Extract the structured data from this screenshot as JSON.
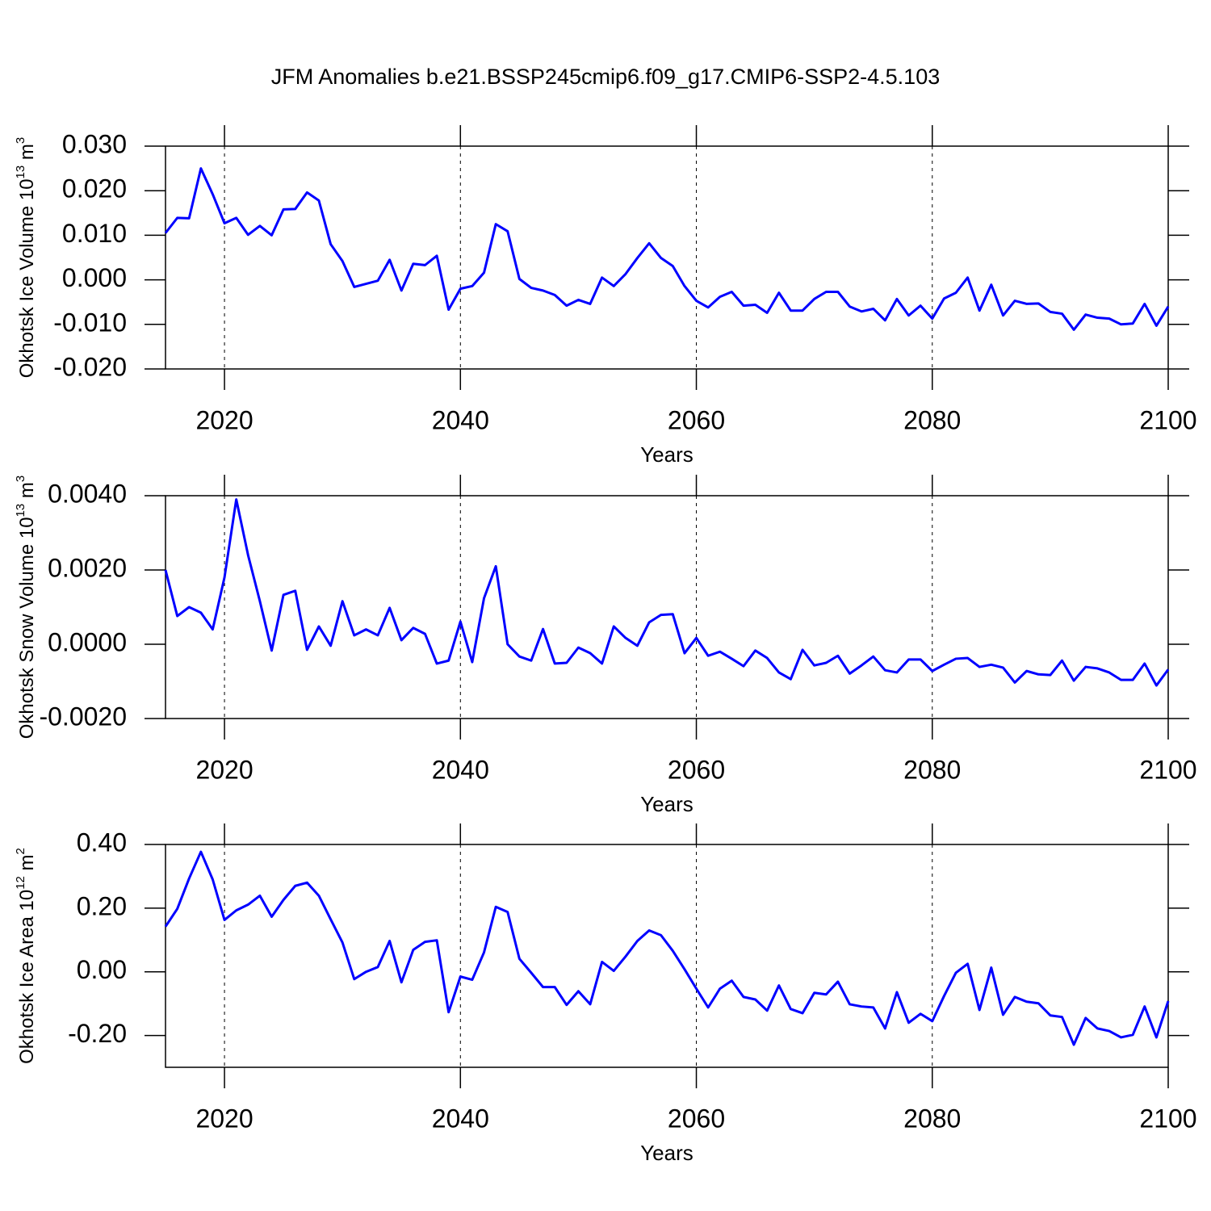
{
  "title": "JFM Anomalies b.e21.BSSP245cmip6.f09_g17.CMIP6-SSP2-4.5.103",
  "chart_data": [
    {
      "type": "line",
      "xlabel": "Years",
      "ylabel": [
        "Okhotsk Ice Volume 10",
        "13",
        " m",
        "3"
      ],
      "x": [
        2015,
        2016,
        2017,
        2018,
        2019,
        2020,
        2021,
        2022,
        2023,
        2024,
        2025,
        2026,
        2027,
        2028,
        2029,
        2030,
        2031,
        2032,
        2033,
        2034,
        2035,
        2036,
        2037,
        2038,
        2039,
        2040,
        2041,
        2042,
        2043,
        2044,
        2045,
        2046,
        2047,
        2048,
        2049,
        2050,
        2051,
        2052,
        2053,
        2054,
        2055,
        2056,
        2057,
        2058,
        2059,
        2060,
        2061,
        2062,
        2063,
        2064,
        2065,
        2066,
        2067,
        2068,
        2069,
        2070,
        2071,
        2072,
        2073,
        2074,
        2075,
        2076,
        2077,
        2078,
        2079,
        2080,
        2081,
        2082,
        2083,
        2084,
        2085,
        2086,
        2087,
        2088,
        2089,
        2090,
        2091,
        2092,
        2093,
        2094,
        2095,
        2096,
        2097,
        2098,
        2099,
        2100
      ],
      "series": [
        {
          "color": "#0000ff",
          "values": [
            0.0105,
            0.0139,
            0.0138,
            0.025,
            0.0192,
            0.0127,
            0.0139,
            0.0101,
            0.0121,
            0.01,
            0.0158,
            0.0159,
            0.0196,
            0.0178,
            0.008,
            0.0042,
            -0.0016,
            -0.0009,
            -0.0002,
            0.0045,
            -0.0024,
            0.0036,
            0.0033,
            0.0054,
            -0.0067,
            -0.002,
            -0.0014,
            0.0016,
            0.0125,
            0.0109,
            0.0002,
            -0.0018,
            -0.0024,
            -0.0034,
            -0.0058,
            -0.0045,
            -0.0054,
            0.0005,
            -0.0014,
            0.0013,
            0.0049,
            0.0082,
            0.0049,
            0.0031,
            -0.0014,
            -0.0047,
            -0.0062,
            -0.0038,
            -0.0027,
            -0.0058,
            -0.0056,
            -0.0074,
            -0.0029,
            -0.0069,
            -0.0069,
            -0.0043,
            -0.0027,
            -0.0027,
            -0.006,
            -0.0071,
            -0.0065,
            -0.0091,
            -0.0043,
            -0.008,
            -0.0058,
            -0.0087,
            -0.0042,
            -0.0029,
            0.0005,
            -0.0069,
            -0.0011,
            -0.008,
            -0.0047,
            -0.0054,
            -0.0053,
            -0.0072,
            -0.0076,
            -0.0112,
            -0.0078,
            -0.0085,
            -0.0087,
            -0.01,
            -0.0098,
            -0.0054,
            -0.0103,
            -0.006
          ]
        }
      ],
      "xlim": [
        2015,
        2100
      ],
      "ylim": [
        -0.02,
        0.03
      ],
      "xticks": [
        2020,
        2040,
        2060,
        2080,
        2100
      ],
      "yticks": [
        {
          "value": -0.02,
          "label": "-0.020"
        },
        {
          "value": -0.01,
          "label": "-0.010"
        },
        {
          "value": 0,
          "label": "0.000"
        },
        {
          "value": 0.01,
          "label": "0.010"
        },
        {
          "value": 0.02,
          "label": "0.020"
        },
        {
          "value": 0.03,
          "label": "0.030"
        }
      ],
      "xgrid": true
    },
    {
      "type": "line",
      "xlabel": "Years",
      "ylabel": [
        "Okhotsk Snow Volume 10",
        "13",
        " m",
        "3"
      ],
      "x": [
        2015,
        2016,
        2017,
        2018,
        2019,
        2020,
        2021,
        2022,
        2023,
        2024,
        2025,
        2026,
        2027,
        2028,
        2029,
        2030,
        2031,
        2032,
        2033,
        2034,
        2035,
        2036,
        2037,
        2038,
        2039,
        2040,
        2041,
        2042,
        2043,
        2044,
        2045,
        2046,
        2047,
        2048,
        2049,
        2050,
        2051,
        2052,
        2053,
        2054,
        2055,
        2056,
        2057,
        2058,
        2059,
        2060,
        2061,
        2062,
        2063,
        2064,
        2065,
        2066,
        2067,
        2068,
        2069,
        2070,
        2071,
        2072,
        2073,
        2074,
        2075,
        2076,
        2077,
        2078,
        2079,
        2080,
        2081,
        2082,
        2083,
        2084,
        2085,
        2086,
        2087,
        2088,
        2089,
        2090,
        2091,
        2092,
        2093,
        2094,
        2095,
        2096,
        2097,
        2098,
        2099,
        2100
      ],
      "series": [
        {
          "color": "#0000ff",
          "values": [
            0.002,
            0.00076,
            0.001,
            0.00085,
            0.0004,
            0.0018,
            0.0039,
            0.0024,
            0.00116,
            -0.00017,
            0.00133,
            0.00144,
            -0.00015,
            0.00048,
            -4e-05,
            0.00116,
            0.00024,
            0.0004,
            0.00024,
            0.00098,
            0.00011,
            0.00044,
            0.00028,
            -0.00052,
            -0.00044,
            0.00061,
            -0.00048,
            0.00124,
            0.0021,
            0,
            -0.00033,
            -0.00044,
            0.00041,
            -0.00052,
            -0.0005,
            -9e-05,
            -0.00024,
            -0.00052,
            0.00048,
            0.00017,
            -4e-05,
            0.00059,
            0.00079,
            0.00081,
            -0.00024,
            0.00017,
            -0.00031,
            -0.0002,
            -0.00039,
            -0.00059,
            -0.00017,
            -0.00037,
            -0.00076,
            -0.00094,
            -0.00015,
            -0.00057,
            -0.0005,
            -0.00031,
            -0.00079,
            -0.00057,
            -0.00033,
            -0.0007,
            -0.00076,
            -0.00041,
            -0.00041,
            -0.00072,
            -0.00055,
            -0.00039,
            -0.00037,
            -0.00061,
            -0.00055,
            -0.00063,
            -0.00103,
            -0.00072,
            -0.00081,
            -0.00083,
            -0.00044,
            -0.00098,
            -0.00061,
            -0.00065,
            -0.00076,
            -0.00096,
            -0.00096,
            -0.00052,
            -0.00111,
            -0.00068
          ]
        }
      ],
      "xlim": [
        2015,
        2100
      ],
      "ylim": [
        -0.002,
        0.004
      ],
      "xticks": [
        2020,
        2040,
        2060,
        2080,
        2100
      ],
      "yticks": [
        {
          "value": -0.002,
          "label": "-0.0020"
        },
        {
          "value": 0,
          "label": "0.0000"
        },
        {
          "value": 0.002,
          "label": "0.0020"
        },
        {
          "value": 0.004,
          "label": "0.0040"
        }
      ],
      "xgrid": true
    },
    {
      "type": "line",
      "xlabel": "Years",
      "ylabel": [
        "Okhotsk Ice Area 10",
        "12",
        " m",
        "2"
      ],
      "x": [
        2015,
        2016,
        2017,
        2018,
        2019,
        2020,
        2021,
        2022,
        2023,
        2024,
        2025,
        2026,
        2027,
        2028,
        2029,
        2030,
        2031,
        2032,
        2033,
        2034,
        2035,
        2036,
        2037,
        2038,
        2039,
        2040,
        2041,
        2042,
        2043,
        2044,
        2045,
        2046,
        2047,
        2048,
        2049,
        2050,
        2051,
        2052,
        2053,
        2054,
        2055,
        2056,
        2057,
        2058,
        2059,
        2060,
        2061,
        2062,
        2063,
        2064,
        2065,
        2066,
        2067,
        2068,
        2069,
        2070,
        2071,
        2072,
        2073,
        2074,
        2075,
        2076,
        2077,
        2078,
        2079,
        2080,
        2081,
        2082,
        2083,
        2084,
        2085,
        2086,
        2087,
        2088,
        2089,
        2090,
        2091,
        2092,
        2093,
        2094,
        2095,
        2096,
        2097,
        2098,
        2099,
        2100
      ],
      "series": [
        {
          "color": "#0000ff",
          "values": [
            0.142,
            0.198,
            0.293,
            0.377,
            0.29,
            0.163,
            0.193,
            0.211,
            0.239,
            0.173,
            0.226,
            0.27,
            0.28,
            0.239,
            0.165,
            0.092,
            -0.023,
            0,
            0.015,
            0.097,
            -0.033,
            0.069,
            0.094,
            0.099,
            -0.127,
            -0.015,
            -0.025,
            0.061,
            0.204,
            0.188,
            0.041,
            -0.003,
            -0.048,
            -0.048,
            -0.104,
            -0.061,
            -0.102,
            0.031,
            0.003,
            0.048,
            0.097,
            0.13,
            0.115,
            0.066,
            0.008,
            -0.053,
            -0.112,
            -0.053,
            -0.028,
            -0.079,
            -0.087,
            -0.122,
            -0.043,
            -0.117,
            -0.13,
            -0.066,
            -0.071,
            -0.031,
            -0.102,
            -0.109,
            -0.112,
            -0.178,
            -0.064,
            -0.16,
            -0.132,
            -0.155,
            -0.076,
            -0.003,
            0.025,
            -0.12,
            0.013,
            -0.135,
            -0.079,
            -0.094,
            -0.099,
            -0.137,
            -0.142,
            -0.229,
            -0.145,
            -0.178,
            -0.186,
            -0.206,
            -0.198,
            -0.109,
            -0.206,
            -0.092
          ]
        }
      ],
      "xlim": [
        2015,
        2100
      ],
      "ylim": [
        -0.3,
        0.4
      ],
      "xticks": [
        2020,
        2040,
        2060,
        2080,
        2100
      ],
      "yticks": [
        {
          "value": -0.2,
          "label": "-0.20"
        },
        {
          "value": 0,
          "label": "0.00"
        },
        {
          "value": 0.2,
          "label": "0.20"
        },
        {
          "value": 0.4,
          "label": "0.40"
        }
      ],
      "xgrid": true
    }
  ]
}
